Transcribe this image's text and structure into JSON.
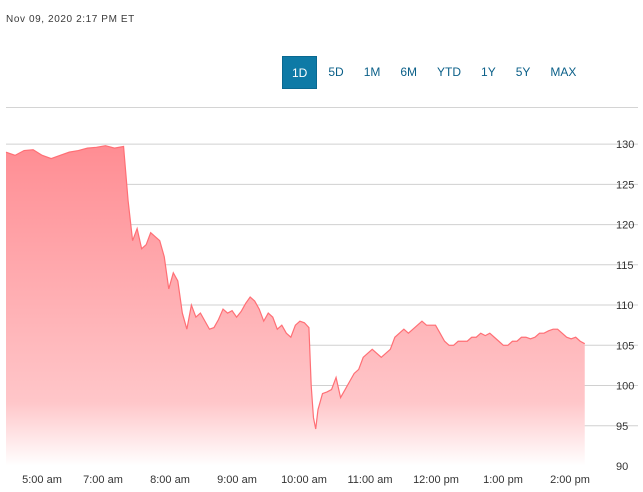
{
  "timestamp": "Nov 09, 2020 2:17 PM ET",
  "range_buttons": [
    {
      "label": "1D",
      "active": true
    },
    {
      "label": "5D",
      "active": false
    },
    {
      "label": "1M",
      "active": false
    },
    {
      "label": "6M",
      "active": false
    },
    {
      "label": "YTD",
      "active": false
    },
    {
      "label": "1Y",
      "active": false
    },
    {
      "label": "5Y",
      "active": false
    },
    {
      "label": "MAX",
      "active": false
    }
  ],
  "colors": {
    "line": "#ff6f75",
    "fill_top": "#ff8d93",
    "fill_bottom": "#ffffff",
    "grid": "#d0d0d0",
    "active_button": "#0e7aa6"
  },
  "chart_data": {
    "type": "area",
    "title": "",
    "xlabel": "",
    "ylabel": "",
    "ylim": [
      90,
      132
    ],
    "y_ticks": [
      90,
      95,
      100,
      105,
      110,
      115,
      120,
      125,
      130
    ],
    "x_ticks": [
      "5:00 am",
      "7:00 am",
      "8:00 am",
      "9:00 am",
      "10:00 am",
      "11:00 am",
      "12:00 pm",
      "1:00 pm",
      "2:00 pm"
    ],
    "grid": true,
    "series": [
      {
        "values": [
          [
            0,
            129.0
          ],
          [
            2,
            128.6
          ],
          [
            4,
            129.2
          ],
          [
            6,
            129.3
          ],
          [
            8,
            128.6
          ],
          [
            10,
            128.2
          ],
          [
            12,
            128.6
          ],
          [
            14,
            129.0
          ],
          [
            16,
            129.2
          ],
          [
            18,
            129.5
          ],
          [
            20,
            129.6
          ],
          [
            22,
            129.8
          ],
          [
            24,
            129.5
          ],
          [
            26,
            129.7
          ],
          [
            27,
            123.0
          ],
          [
            28,
            118.0
          ],
          [
            29,
            119.5
          ],
          [
            30,
            117.0
          ],
          [
            31,
            117.5
          ],
          [
            32,
            119.0
          ],
          [
            33,
            118.5
          ],
          [
            34,
            118.0
          ],
          [
            35,
            116.0
          ],
          [
            36,
            112.0
          ],
          [
            37,
            114.0
          ],
          [
            38,
            113.0
          ],
          [
            39,
            109.0
          ],
          [
            40,
            107.0
          ],
          [
            41,
            110.0
          ],
          [
            42,
            108.5
          ],
          [
            43,
            109.0
          ],
          [
            44,
            108.0
          ],
          [
            45,
            107.0
          ],
          [
            46,
            107.2
          ],
          [
            47,
            108.2
          ],
          [
            48,
            109.5
          ],
          [
            49,
            109.0
          ],
          [
            50,
            109.3
          ],
          [
            51,
            108.5
          ],
          [
            52,
            109.2
          ],
          [
            53,
            110.2
          ],
          [
            54,
            111.0
          ],
          [
            55,
            110.5
          ],
          [
            56,
            109.5
          ],
          [
            57,
            108.0
          ],
          [
            58,
            109.0
          ],
          [
            59,
            108.5
          ],
          [
            60,
            107.0
          ],
          [
            61,
            107.5
          ],
          [
            62,
            106.5
          ],
          [
            63,
            106.0
          ],
          [
            64,
            107.5
          ],
          [
            65,
            108.0
          ],
          [
            66,
            107.8
          ],
          [
            67,
            107.2
          ],
          [
            67.5,
            100.0
          ],
          [
            68,
            96.0
          ],
          [
            68.5,
            94.6
          ],
          [
            69,
            97.0
          ],
          [
            70,
            99.0
          ],
          [
            71,
            99.2
          ],
          [
            72,
            99.5
          ],
          [
            73,
            101.0
          ],
          [
            74,
            98.5
          ],
          [
            75,
            99.5
          ],
          [
            76,
            100.5
          ],
          [
            77,
            101.5
          ],
          [
            78,
            102.0
          ],
          [
            79,
            103.5
          ],
          [
            80,
            104.0
          ],
          [
            81,
            104.5
          ],
          [
            82,
            104.0
          ],
          [
            83,
            103.5
          ],
          [
            84,
            104.0
          ],
          [
            85,
            104.5
          ],
          [
            86,
            106.0
          ],
          [
            87,
            106.5
          ],
          [
            88,
            107.0
          ],
          [
            89,
            106.5
          ],
          [
            90,
            107.0
          ],
          [
            91,
            107.5
          ],
          [
            92,
            108.0
          ],
          [
            93,
            107.5
          ],
          [
            94,
            107.5
          ],
          [
            95,
            107.5
          ],
          [
            96,
            106.5
          ],
          [
            97,
            105.5
          ],
          [
            98,
            105.0
          ],
          [
            99,
            105.0
          ],
          [
            100,
            105.5
          ],
          [
            101,
            105.5
          ],
          [
            102,
            105.5
          ],
          [
            103,
            106.0
          ],
          [
            104,
            106.0
          ],
          [
            105,
            106.5
          ],
          [
            106,
            106.2
          ],
          [
            107,
            106.5
          ],
          [
            108,
            106.0
          ],
          [
            109,
            105.5
          ],
          [
            110,
            105.0
          ],
          [
            111,
            105.0
          ],
          [
            112,
            105.5
          ],
          [
            113,
            105.5
          ],
          [
            114,
            106.0
          ],
          [
            115,
            106.0
          ],
          [
            116,
            105.8
          ],
          [
            117,
            106.0
          ],
          [
            118,
            106.5
          ],
          [
            119,
            106.5
          ],
          [
            120,
            106.8
          ],
          [
            121,
            107.0
          ],
          [
            122,
            107.0
          ],
          [
            123,
            106.5
          ],
          [
            124,
            106.0
          ],
          [
            125,
            105.8
          ],
          [
            126,
            106.0
          ],
          [
            127,
            105.5
          ],
          [
            128,
            105.2
          ]
        ]
      }
    ]
  }
}
